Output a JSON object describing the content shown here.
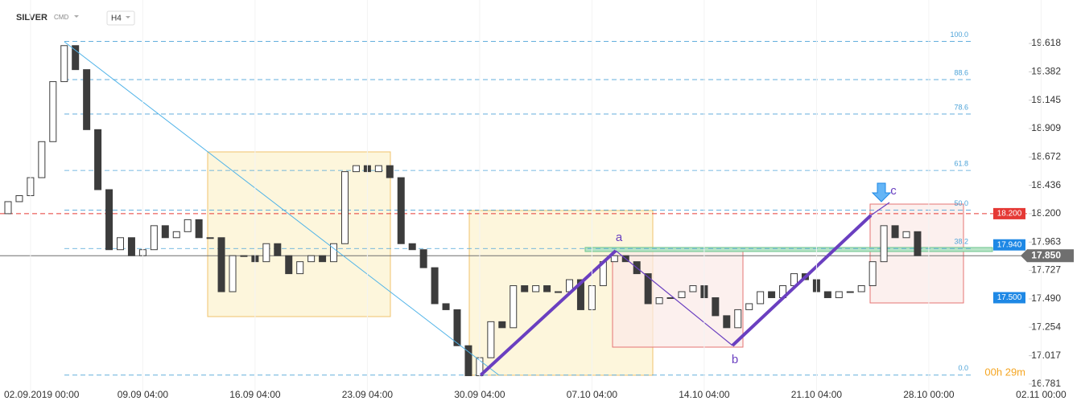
{
  "chart_data": {
    "type": "candlestick",
    "title": "SILVER",
    "subtitle": "CMD",
    "timeframe": "H4",
    "countdown": "00h 29m",
    "categories": [
      null,
      null,
      "02.09.2019 00:00",
      null,
      null,
      null,
      null,
      null,
      null,
      null,
      null,
      null,
      "09.09 04:00",
      null,
      null,
      null,
      null,
      null,
      null,
      null,
      null,
      null,
      "16.09 04:00",
      null,
      null,
      null,
      null,
      null,
      null,
      null,
      null,
      null,
      "23.09 04:00",
      null,
      null,
      null,
      null,
      null,
      null,
      null,
      null,
      null,
      "30.09 04:00",
      null,
      null,
      null,
      null,
      null,
      null,
      null,
      null,
      null,
      "07.10 04:00",
      null,
      null,
      null,
      null,
      null,
      null,
      null,
      null,
      null,
      "14.10 04:00",
      null,
      null,
      null,
      null,
      null,
      null,
      null,
      null,
      null,
      "21.10 04:00",
      null,
      null,
      null,
      null,
      null,
      null,
      null,
      null,
      null,
      "28.10 00:00",
      null,
      null,
      null,
      null,
      null,
      null,
      null,
      null,
      null,
      "02.11 00:00"
    ],
    "open": [
      18.2,
      18.3,
      18.35,
      18.5,
      18.8,
      19.3,
      19.6,
      19.4,
      18.9,
      18.4,
      17.9,
      18.0,
      17.85,
      17.9,
      18.1,
      18.0,
      18.05,
      18.15,
      18.0,
      18.0,
      17.55,
      17.85,
      17.85,
      17.8,
      17.95,
      17.85,
      17.7,
      17.8,
      17.85,
      17.8,
      17.95,
      18.55,
      18.6,
      18.55,
      18.6,
      18.5,
      17.95,
      17.9,
      17.75,
      17.45,
      17.4,
      17.1,
      16.85,
      17.0,
      17.3,
      17.25,
      17.6,
      17.55,
      17.6,
      17.55,
      17.55,
      17.65,
      17.4,
      17.6,
      17.8,
      17.85,
      17.8,
      17.7,
      17.45,
      17.5,
      17.5,
      17.55,
      17.6,
      17.5,
      17.35,
      17.25,
      17.4,
      17.45,
      17.55,
      17.5,
      17.6,
      17.7,
      17.65,
      17.55,
      17.5,
      17.55,
      17.55,
      17.6,
      17.8,
      18.1,
      18.0,
      18.05,
      null,
      null,
      null,
      null,
      null,
      null,
      null,
      null,
      null,
      null,
      null
    ],
    "close": [
      18.3,
      18.35,
      18.5,
      18.8,
      19.3,
      19.6,
      19.4,
      18.9,
      18.4,
      17.9,
      18.0,
      17.85,
      17.9,
      18.1,
      18.0,
      18.05,
      18.15,
      18.0,
      18.0,
      17.55,
      17.85,
      17.85,
      17.8,
      17.95,
      17.85,
      17.7,
      17.8,
      17.85,
      17.8,
      17.95,
      18.55,
      18.6,
      18.55,
      18.6,
      18.5,
      17.95,
      17.9,
      17.75,
      17.45,
      17.4,
      17.1,
      16.85,
      17.0,
      17.3,
      17.25,
      17.6,
      17.55,
      17.6,
      17.55,
      17.55,
      17.65,
      17.4,
      17.6,
      17.8,
      17.85,
      17.8,
      17.7,
      17.45,
      17.5,
      17.5,
      17.55,
      17.6,
      17.5,
      17.35,
      17.25,
      17.4,
      17.45,
      17.55,
      17.5,
      17.6,
      17.7,
      17.65,
      17.55,
      17.5,
      17.55,
      17.55,
      17.6,
      17.8,
      18.1,
      18.0,
      18.05,
      17.85,
      null,
      null,
      null,
      null,
      null,
      null,
      null,
      null,
      null,
      null,
      null
    ],
    "up_color": "#ffffff",
    "down_color": "#3c3c3c",
    "ylim": [
      16.72,
      19.98
    ],
    "yticks": [
      19.618,
      19.382,
      19.145,
      18.909,
      18.672,
      18.436,
      {
        "value": 18.2,
        "label": "18.200"
      },
      17.963,
      17.727,
      {
        "value": 17.49,
        "label": "17.490"
      },
      17.254,
      17.017,
      16.781
    ],
    "fib_levels": [
      {
        "label": "100.0",
        "price": 19.635
      },
      {
        "label": "88.6",
        "price": 19.317
      },
      {
        "label": "78.6",
        "price": 19.03
      },
      {
        "label": "61.8",
        "price": 18.56
      },
      {
        "label": "50.0",
        "price": 18.23
      },
      {
        "label": "38.2",
        "price": 17.91
      },
      {
        "label": "0.0",
        "price": 16.855
      }
    ],
    "fib_color": "#4da3d8",
    "price_tags": [
      {
        "label": "18.200",
        "value": 18.2,
        "color": "#e53935",
        "line": "dashed"
      },
      {
        "label": "17.940",
        "value": 17.94,
        "color": "#1e88e5",
        "line": "none"
      },
      {
        "label": "17.500",
        "value": 17.5,
        "color": "#1e88e5",
        "line": "none"
      },
      {
        "label": "17.850",
        "value": 17.85,
        "color": "#6f6f6f",
        "line": "solid"
      }
    ],
    "wave_labels": [
      "a",
      "b",
      "c"
    ]
  }
}
